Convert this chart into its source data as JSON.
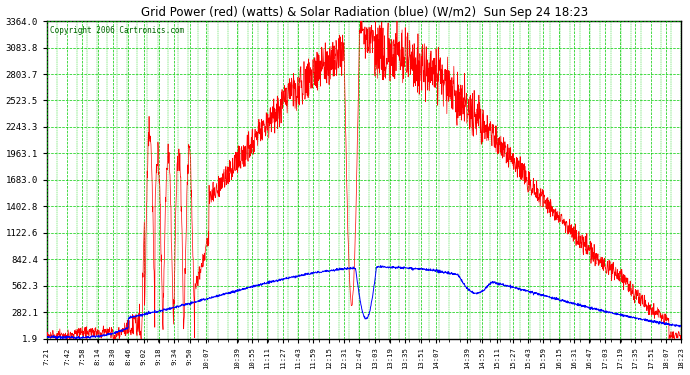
{
  "title": "Grid Power (red) (watts) & Solar Radiation (blue) (W/m2)  Sun Sep 24 18:23",
  "copyright": "Copyright 2006 Cartronics.com",
  "background_color": "#ffffff",
  "plot_bg_color": "#ffffff",
  "grid_color": "#00cc00",
  "y_ticks": [
    1.9,
    282.1,
    562.3,
    842.4,
    1122.6,
    1402.8,
    1683.0,
    1963.1,
    2243.3,
    2523.5,
    2803.7,
    3083.8,
    3364.0
  ],
  "x_labels": [
    "7:21",
    "7:42",
    "7:58",
    "8:14",
    "8:30",
    "8:46",
    "9:02",
    "9:18",
    "9:34",
    "9:50",
    "10:07",
    "10:39",
    "10:55",
    "11:11",
    "11:27",
    "11:43",
    "11:59",
    "12:15",
    "12:31",
    "12:47",
    "13:03",
    "13:19",
    "13:35",
    "13:51",
    "14:07",
    "14:39",
    "14:55",
    "15:11",
    "15:27",
    "15:43",
    "15:59",
    "16:15",
    "16:31",
    "16:47",
    "17:03",
    "17:19",
    "17:35",
    "17:51",
    "18:07",
    "18:23"
  ],
  "ymin": 1.9,
  "ymax": 3364.0,
  "figwidth": 6.9,
  "figheight": 3.75,
  "dpi": 100
}
